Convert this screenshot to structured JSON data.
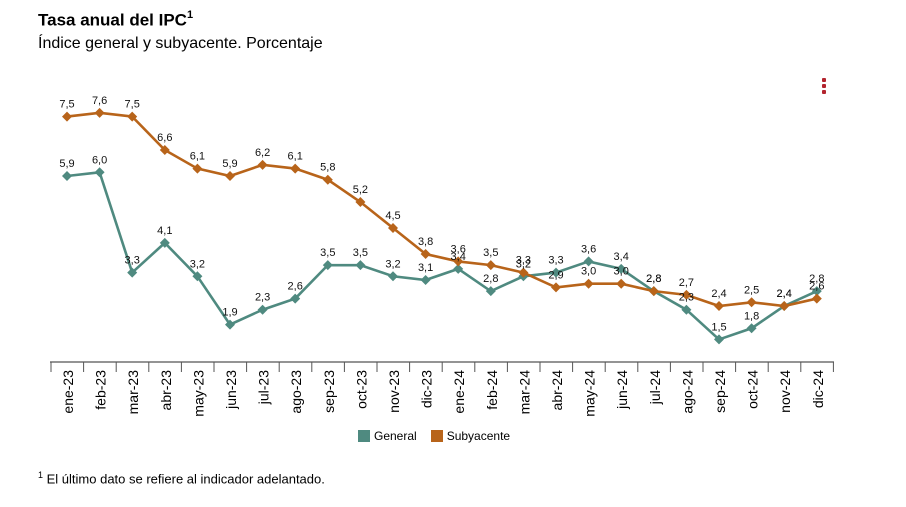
{
  "header": {
    "title": "Tasa anual del IPC",
    "title_sup": "1",
    "subtitle": "Índice general y subyacente. Porcentaje"
  },
  "menu": {
    "icon": "vertical-dots-icon"
  },
  "footnote": {
    "sup": "1",
    "text": " El último dato se refiere al indicador adelantado."
  },
  "colors": {
    "general": "#4f8a80",
    "subyacente": "#b8641a",
    "axis": "#555555",
    "menu": "#b3242e"
  },
  "chart_data": {
    "type": "line",
    "title": "Tasa anual del IPC",
    "subtitle": "Índice general y subyacente. Porcentaje",
    "categories": [
      "ene-23",
      "feb-23",
      "mar-23",
      "abr-23",
      "may-23",
      "jun-23",
      "jul-23",
      "ago-23",
      "sep-23",
      "oct-23",
      "nov-23",
      "dic-23",
      "ene-24",
      "feb-24",
      "mar-24",
      "abr-24",
      "may-24",
      "jun-24",
      "jul-24",
      "ago-24",
      "sep-24",
      "oct-24",
      "nov-24",
      "dic-24"
    ],
    "series": [
      {
        "name": "General",
        "labels": [
          "5,9",
          "6,0",
          "3,3",
          "4,1",
          "3,2",
          "1,9",
          "2,3",
          "2,6",
          "3,5",
          "3,5",
          "3,2",
          "3,1",
          "3,4",
          "2,8",
          "3,2",
          "3,3",
          "3,6",
          "3,4",
          "2,8",
          "2,3",
          "1,5",
          "1,8",
          "2,4",
          "2,8"
        ],
        "values": [
          5.9,
          6.0,
          3.3,
          4.1,
          3.2,
          1.9,
          2.3,
          2.6,
          3.5,
          3.5,
          3.2,
          3.1,
          3.4,
          2.8,
          3.2,
          3.3,
          3.6,
          3.4,
          2.8,
          2.3,
          1.5,
          1.8,
          2.4,
          2.8
        ]
      },
      {
        "name": "Subyacente",
        "labels": [
          "7,5",
          "7,6",
          "7,5",
          "6,6",
          "6,1",
          "5,9",
          "6,2",
          "6,1",
          "5,8",
          "5,2",
          "4,5",
          "3,8",
          "3,6",
          "3,5",
          "3,3",
          "2,9",
          "3,0",
          "3,0",
          "2,8",
          "2,7",
          "2,4",
          "2,5",
          "2,4",
          "2,6"
        ],
        "values": [
          7.5,
          7.6,
          7.5,
          6.6,
          6.1,
          5.9,
          6.2,
          6.1,
          5.8,
          5.2,
          4.5,
          3.8,
          3.6,
          3.5,
          3.3,
          2.9,
          3.0,
          3.0,
          2.8,
          2.7,
          2.4,
          2.5,
          2.4,
          2.6
        ]
      }
    ],
    "xlabel": "",
    "ylabel": "",
    "ylim": [
      1.0,
      8.0
    ],
    "grid": false,
    "legend": "bottom-center"
  }
}
